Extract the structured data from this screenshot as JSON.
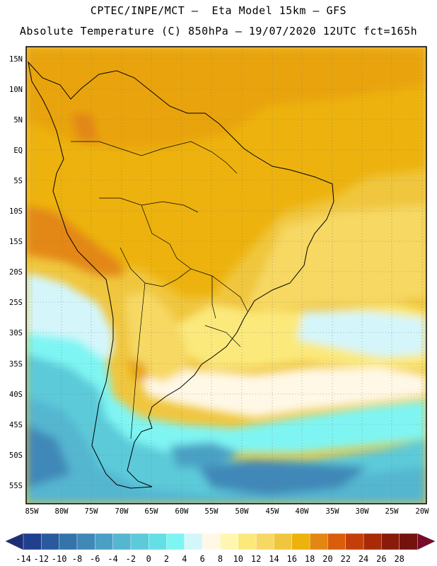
{
  "title_line1": "CPTEC/INPE/MCT –  Eta Model 15km – GFS",
  "title_line2": "Absolute Temperature (C) 850hPa – 19/07/2020 12UTC fct=165h",
  "lat_labels": [
    "15N",
    "10N",
    "5N",
    "EQ",
    "5S",
    "10S",
    "15S",
    "20S",
    "25S",
    "30S",
    "35S",
    "40S",
    "45S",
    "50S",
    "55S"
  ],
  "lon_labels": [
    "85W",
    "80W",
    "75W",
    "70W",
    "65W",
    "60W",
    "55W",
    "50W",
    "45W",
    "40W",
    "35W",
    "30W",
    "25W",
    "20W"
  ],
  "colorbar": {
    "labels": [
      "-14",
      "-12",
      "-10",
      "-8",
      "-6",
      "-4",
      "-2",
      "0",
      "2",
      "4",
      "6",
      "8",
      "10",
      "12",
      "14",
      "16",
      "18",
      "20",
      "22",
      "24",
      "26",
      "28"
    ],
    "colors": [
      "#213f8f",
      "#2a5a9e",
      "#3574ab",
      "#3f88b8",
      "#4aa0c4",
      "#55b6d0",
      "#5ccad9",
      "#62e0e4",
      "#7ff5f3",
      "#d4f6fb",
      "#fff8e6",
      "#fff7b0",
      "#fbe97c",
      "#f6d864",
      "#f0c63e",
      "#edb20c",
      "#e38713",
      "#d95d0b",
      "#c43f08",
      "#a82a08",
      "#8a1a0a",
      "#74120e"
    ]
  }
}
